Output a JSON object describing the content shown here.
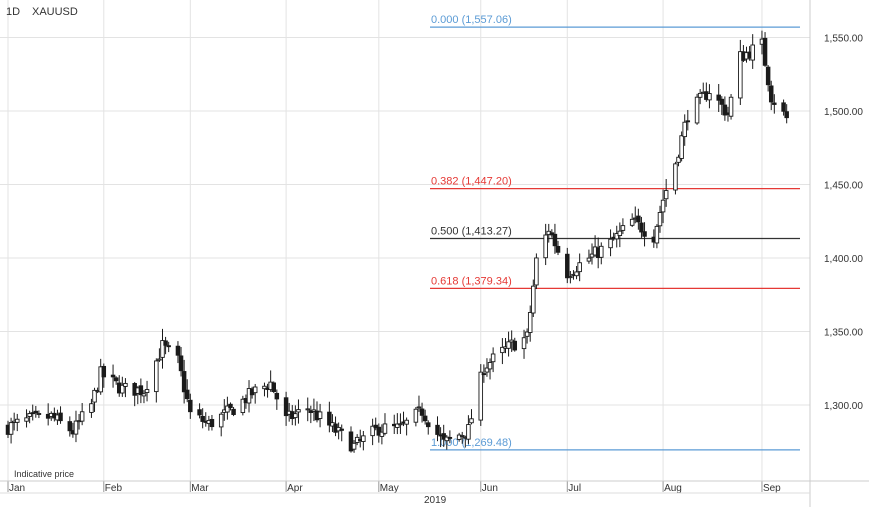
{
  "header": {
    "interval": "1D",
    "symbol": "XAUUSD"
  },
  "footer_note": "Indicative price",
  "colors": {
    "candle": "#1a1a1a",
    "grid": "#e3e3e3",
    "fib_blue": "#5b9bd5",
    "fib_red": "#e53935",
    "fib_black": "#333333"
  },
  "chart_data": {
    "type": "candlestick",
    "symbol": "XAUUSD",
    "interval": "1D",
    "year_label": "2019",
    "ylim": [
      1250,
      1575
    ],
    "y_ticks": [
      1300,
      1350,
      1400,
      1450,
      1500,
      1550
    ],
    "y_tick_labels": [
      "1,300.00",
      "1,350.00",
      "1,400.00",
      "1,450.00",
      "1,500.00",
      "1,550.00"
    ],
    "x_ticks": [
      {
        "label": "Jan",
        "date": "2019-01-01"
      },
      {
        "label": "Feb",
        "date": "2019-02-01"
      },
      {
        "label": "Mar",
        "date": "2019-03-01"
      },
      {
        "label": "Apr",
        "date": "2019-04-01"
      },
      {
        "label": "May",
        "date": "2019-05-01"
      },
      {
        "label": "Jun",
        "date": "2019-06-03"
      },
      {
        "label": "Jul",
        "date": "2019-07-01"
      },
      {
        "label": "Aug",
        "date": "2019-08-01"
      },
      {
        "label": "Sep",
        "date": "2019-09-02"
      }
    ],
    "fib_levels": [
      {
        "ratio": "0.000",
        "value": 1557.06,
        "label": "0.000 (1,557.06)",
        "color": "#5b9bd5"
      },
      {
        "ratio": "0.382",
        "value": 1447.2,
        "label": "0.382 (1,447.20)",
        "color": "#e53935"
      },
      {
        "ratio": "0.500",
        "value": 1413.27,
        "label": "0.500 (1,413.27)",
        "color": "#333333"
      },
      {
        "ratio": "0.618",
        "value": 1379.34,
        "label": "0.618 (1,379.34)",
        "color": "#e53935"
      },
      {
        "ratio": "1.000",
        "value": 1269.48,
        "label": "1.000 (1,269.48)",
        "color": "#5b9bd5"
      }
    ],
    "anchors": [
      [
        "2019-01-01",
        1285
      ],
      [
        "2019-01-08",
        1290
      ],
      [
        "2019-01-15",
        1292
      ],
      [
        "2019-01-22",
        1282
      ],
      [
        "2019-01-28",
        1300
      ],
      [
        "2019-01-31",
        1321
      ],
      [
        "2019-02-07",
        1311
      ],
      [
        "2019-02-14",
        1310
      ],
      [
        "2019-02-20",
        1340
      ],
      [
        "2019-02-25",
        1330
      ],
      [
        "2019-03-01",
        1294
      ],
      [
        "2019-03-07",
        1287
      ],
      [
        "2019-03-14",
        1296
      ],
      [
        "2019-03-21",
        1308
      ],
      [
        "2019-03-27",
        1315
      ],
      [
        "2019-04-01",
        1290
      ],
      [
        "2019-04-08",
        1298
      ],
      [
        "2019-04-15",
        1286
      ],
      [
        "2019-04-23",
        1272
      ],
      [
        "2019-05-01",
        1284
      ],
      [
        "2019-05-08",
        1284
      ],
      [
        "2019-05-15",
        1296
      ],
      [
        "2019-05-22",
        1274
      ],
      [
        "2019-05-30",
        1283
      ],
      [
        "2019-06-04",
        1326
      ],
      [
        "2019-06-13",
        1341
      ],
      [
        "2019-06-18",
        1346
      ],
      [
        "2019-06-21",
        1398
      ],
      [
        "2019-06-25",
        1420
      ],
      [
        "2019-07-01",
        1390
      ],
      [
        "2019-07-08",
        1400
      ],
      [
        "2019-07-15",
        1410
      ],
      [
        "2019-07-22",
        1425
      ],
      [
        "2019-07-29",
        1415
      ],
      [
        "2019-08-01",
        1440
      ],
      [
        "2019-08-05",
        1465
      ],
      [
        "2019-08-09",
        1498
      ],
      [
        "2019-08-16",
        1514
      ],
      [
        "2019-08-22",
        1498
      ],
      [
        "2019-08-26",
        1537
      ],
      [
        "2019-09-02",
        1545
      ],
      [
        "2019-09-05",
        1510
      ],
      [
        "2019-09-10",
        1495
      ]
    ]
  }
}
